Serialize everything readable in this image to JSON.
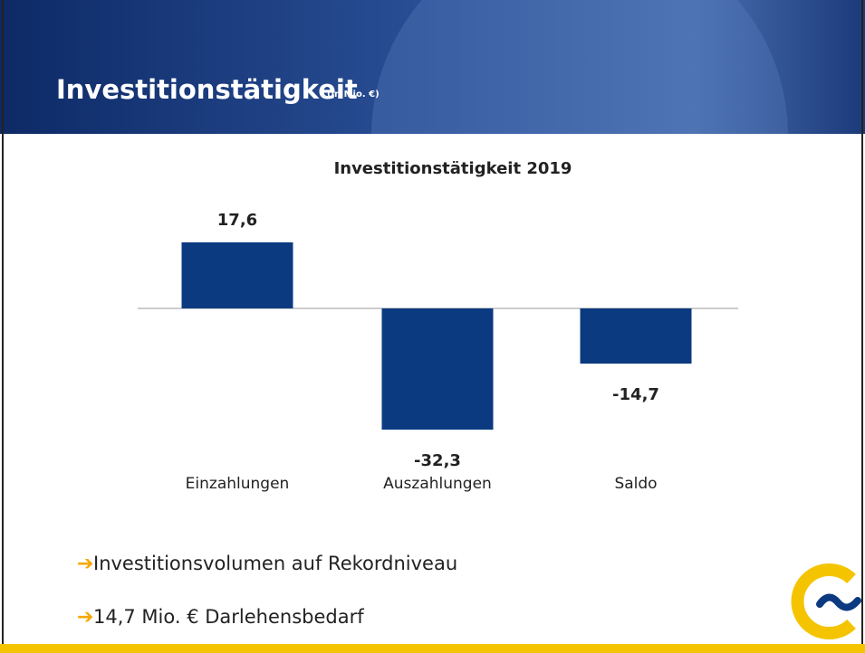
{
  "header": {
    "title": "Investitionstätigkeit",
    "subtitle": "(in Mio. €)"
  },
  "chart_data": {
    "type": "bar",
    "title": "Investitionstätigkeit 2019",
    "categories": [
      "Einzahlungen",
      "Auszahlungen",
      "Saldo"
    ],
    "values": [
      17.6,
      -32.3,
      -14.7
    ],
    "value_labels": [
      "17,6",
      "-32,3",
      "-14,7"
    ],
    "color": "#0b3a80"
  },
  "bullets": [
    "Investitionsvolumen auf Rekordniveau",
    "14,7 Mio. € Darlehensbedarf"
  ]
}
